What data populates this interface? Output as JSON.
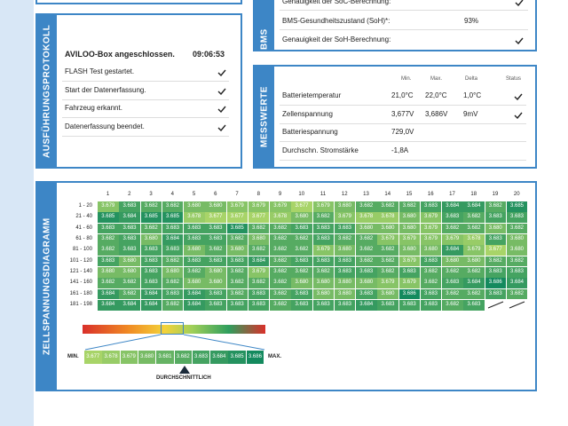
{
  "bms": {
    "title": "BMS",
    "rows": [
      {
        "label": "Genauigkeit der SoC-Berechnung:",
        "value": null,
        "checked": true
      },
      {
        "label": "BMS-Gesundheitszustand (SoH)*:",
        "value": "93%",
        "checked": false
      },
      {
        "label": "Genauigkeit der SoH-Berechnung:",
        "value": null,
        "checked": true
      }
    ]
  },
  "protocol": {
    "title": "AUSFÜHRUNGSPROTOKOLL",
    "heading": "AVILOO-Box angeschlossen.",
    "time": "09:06:53",
    "steps": [
      {
        "label": "FLASH Test gestartet.",
        "checked": true
      },
      {
        "label": "Start der Datenerfassung.",
        "checked": true
      },
      {
        "label": "Fahrzeug erkannt.",
        "checked": true
      },
      {
        "label": "Datenerfassung beendet.",
        "checked": true
      }
    ]
  },
  "measurements": {
    "title": "MESSWERTE",
    "columns": [
      "Min.",
      "Max.",
      "Delta",
      "Status"
    ],
    "rows": [
      {
        "label": "Batterietemperatur",
        "min": "21,0°C",
        "max": "22,0°C",
        "delta": "1,0°C",
        "checked": true
      },
      {
        "label": "Zellenspannung",
        "min": "3,677V",
        "max": "3,686V",
        "delta": "9mV",
        "checked": true
      },
      {
        "label": "Batteriespannung",
        "min": "729,0V",
        "max": null,
        "delta": null,
        "checked": false
      },
      {
        "label": "Durchschn. Stromstärke",
        "min": "-1,8A",
        "max": null,
        "delta": null,
        "checked": false
      }
    ]
  },
  "cell_voltages": {
    "title": "ZELLSPANNUNGSDIAGRAMM",
    "columns": [
      "1",
      "2",
      "3",
      "4",
      "5",
      "6",
      "7",
      "8",
      "9",
      "10",
      "11",
      "12",
      "13",
      "14",
      "15",
      "16",
      "17",
      "18",
      "19",
      "20"
    ],
    "rows": [
      {
        "label": "1 - 20",
        "values": [
          "3.679",
          "3.683",
          "3.682",
          "3.682",
          "3.680",
          "3.680",
          "3.679",
          "3.679",
          "3.679",
          "3.677",
          "3.679",
          "3.680",
          "3.682",
          "3.682",
          "3.682",
          "3.683",
          "3.684",
          "3.684",
          "3.682",
          "3.685"
        ]
      },
      {
        "label": "21 - 40",
        "values": [
          "3.685",
          "3.684",
          "3.685",
          "3.685",
          "3.678",
          "3.677",
          "3.677",
          "3.677",
          "3.678",
          "3.680",
          "3.682",
          "3.679",
          "3.678",
          "3.678",
          "3.680",
          "3.679",
          "3.683",
          "3.682",
          "3.683",
          "3.683"
        ]
      },
      {
        "label": "41 - 60",
        "values": [
          "3.683",
          "3.683",
          "3.682",
          "3.683",
          "3.683",
          "3.683",
          "3.685",
          "3.682",
          "3.682",
          "3.683",
          "3.683",
          "3.683",
          "3.680",
          "3.680",
          "3.680",
          "3.679",
          "3.682",
          "3.682",
          "3.680",
          "3.682"
        ]
      },
      {
        "label": "61 - 80",
        "values": [
          "3.682",
          "3.683",
          "3.680",
          "3.684",
          "3.683",
          "3.683",
          "3.682",
          "3.680",
          "3.682",
          "3.682",
          "3.683",
          "3.682",
          "3.682",
          "3.679",
          "3.679",
          "3.679",
          "3.679",
          "3.678",
          "3.683",
          "3.680"
        ]
      },
      {
        "label": "81 - 100",
        "values": [
          "3.682",
          "3.683",
          "3.683",
          "3.683",
          "3.680",
          "3.682",
          "3.680",
          "3.682",
          "3.682",
          "3.682",
          "3.679",
          "3.680",
          "3.682",
          "3.682",
          "3.680",
          "3.680",
          "3.684",
          "3.679",
          "3.677",
          "3.680"
        ]
      },
      {
        "label": "101 - 120",
        "values": [
          "3.683",
          "3.680",
          "3.683",
          "3.682",
          "3.683",
          "3.683",
          "3.683",
          "3.684",
          "3.682",
          "3.683",
          "3.683",
          "3.683",
          "3.682",
          "3.682",
          "3.679",
          "3.683",
          "3.680",
          "3.680",
          "3.682",
          "3.682"
        ]
      },
      {
        "label": "121 - 140",
        "values": [
          "3.680",
          "3.680",
          "3.683",
          "3.680",
          "3.682",
          "3.680",
          "3.682",
          "3.679",
          "3.682",
          "3.682",
          "3.682",
          "3.683",
          "3.683",
          "3.682",
          "3.683",
          "3.682",
          "3.682",
          "3.682",
          "3.683",
          "3.683"
        ]
      },
      {
        "label": "141 - 160",
        "values": [
          "3.682",
          "3.682",
          "3.683",
          "3.682",
          "3.680",
          "3.680",
          "3.682",
          "3.682",
          "3.682",
          "3.680",
          "3.680",
          "3.680",
          "3.680",
          "3.679",
          "3.679",
          "3.682",
          "3.683",
          "3.684",
          "3.686",
          "3.684"
        ]
      },
      {
        "label": "161 - 180",
        "values": [
          "3.684",
          "3.682",
          "3.684",
          "3.683",
          "3.684",
          "3.683",
          "3.682",
          "3.683",
          "3.682",
          "3.683",
          "3.680",
          "3.680",
          "3.683",
          "3.680",
          "3.686",
          "3.683",
          "3.682",
          "3.682",
          "3.683",
          "3.682"
        ]
      },
      {
        "label": "181 - 198",
        "values": [
          "3.684",
          "3.684",
          "3.684",
          "3.682",
          "3.684",
          "3.683",
          "3.683",
          "3.683",
          "3.682",
          "3.683",
          "3.683",
          "3.683",
          "3.684",
          "3.683",
          "3.683",
          "3.683",
          "3.682",
          "3.683",
          null,
          null
        ]
      }
    ],
    "legend": {
      "min_label": "MIN.",
      "max_label": "MAX.",
      "average_label": "DURCHSCHNITTLICH",
      "values": [
        "3.677",
        "3.678",
        "3.679",
        "3.680",
        "3.681",
        "3.682",
        "3.683",
        "3.684",
        "3.685",
        "3.686"
      ]
    }
  }
}
